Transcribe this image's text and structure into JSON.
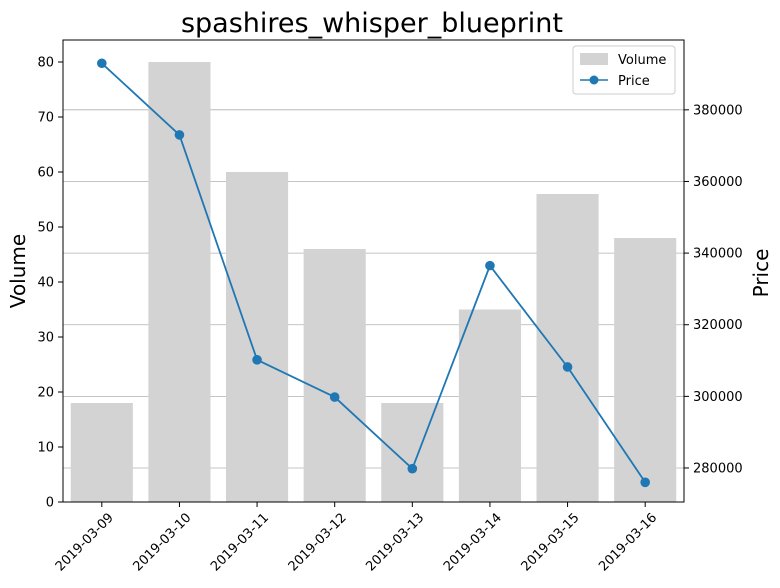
{
  "chart_data": {
    "type": "bar+line",
    "title": "spashires_whisper_blueprint",
    "categories": [
      "2019-03-09",
      "2019-03-10",
      "2019-03-11",
      "2019-03-12",
      "2019-03-13",
      "2019-03-14",
      "2019-03-15",
      "2019-03-16"
    ],
    "series": [
      {
        "name": "Volume",
        "type": "bar",
        "axis": "left",
        "color": "#d3d3d3",
        "values": [
          18,
          80,
          60,
          46,
          18,
          35,
          56,
          48
        ]
      },
      {
        "name": "Price",
        "type": "line",
        "axis": "right",
        "color": "#1f77b4",
        "marker": "circle",
        "values": [
          393000,
          373000,
          310200,
          299800,
          279800,
          336500,
          308200,
          276000
        ]
      }
    ],
    "left_axis": {
      "label": "Volume",
      "ylim": [
        0,
        84
      ],
      "ticks": [
        0,
        10,
        20,
        30,
        40,
        50,
        60,
        70,
        80
      ]
    },
    "right_axis": {
      "label": "Price",
      "ylim": [
        270500,
        399500
      ],
      "ticks": [
        280000,
        300000,
        320000,
        340000,
        360000,
        380000
      ],
      "grid": true
    },
    "x_tick_rotation": 45,
    "legend_position": "upper right"
  }
}
